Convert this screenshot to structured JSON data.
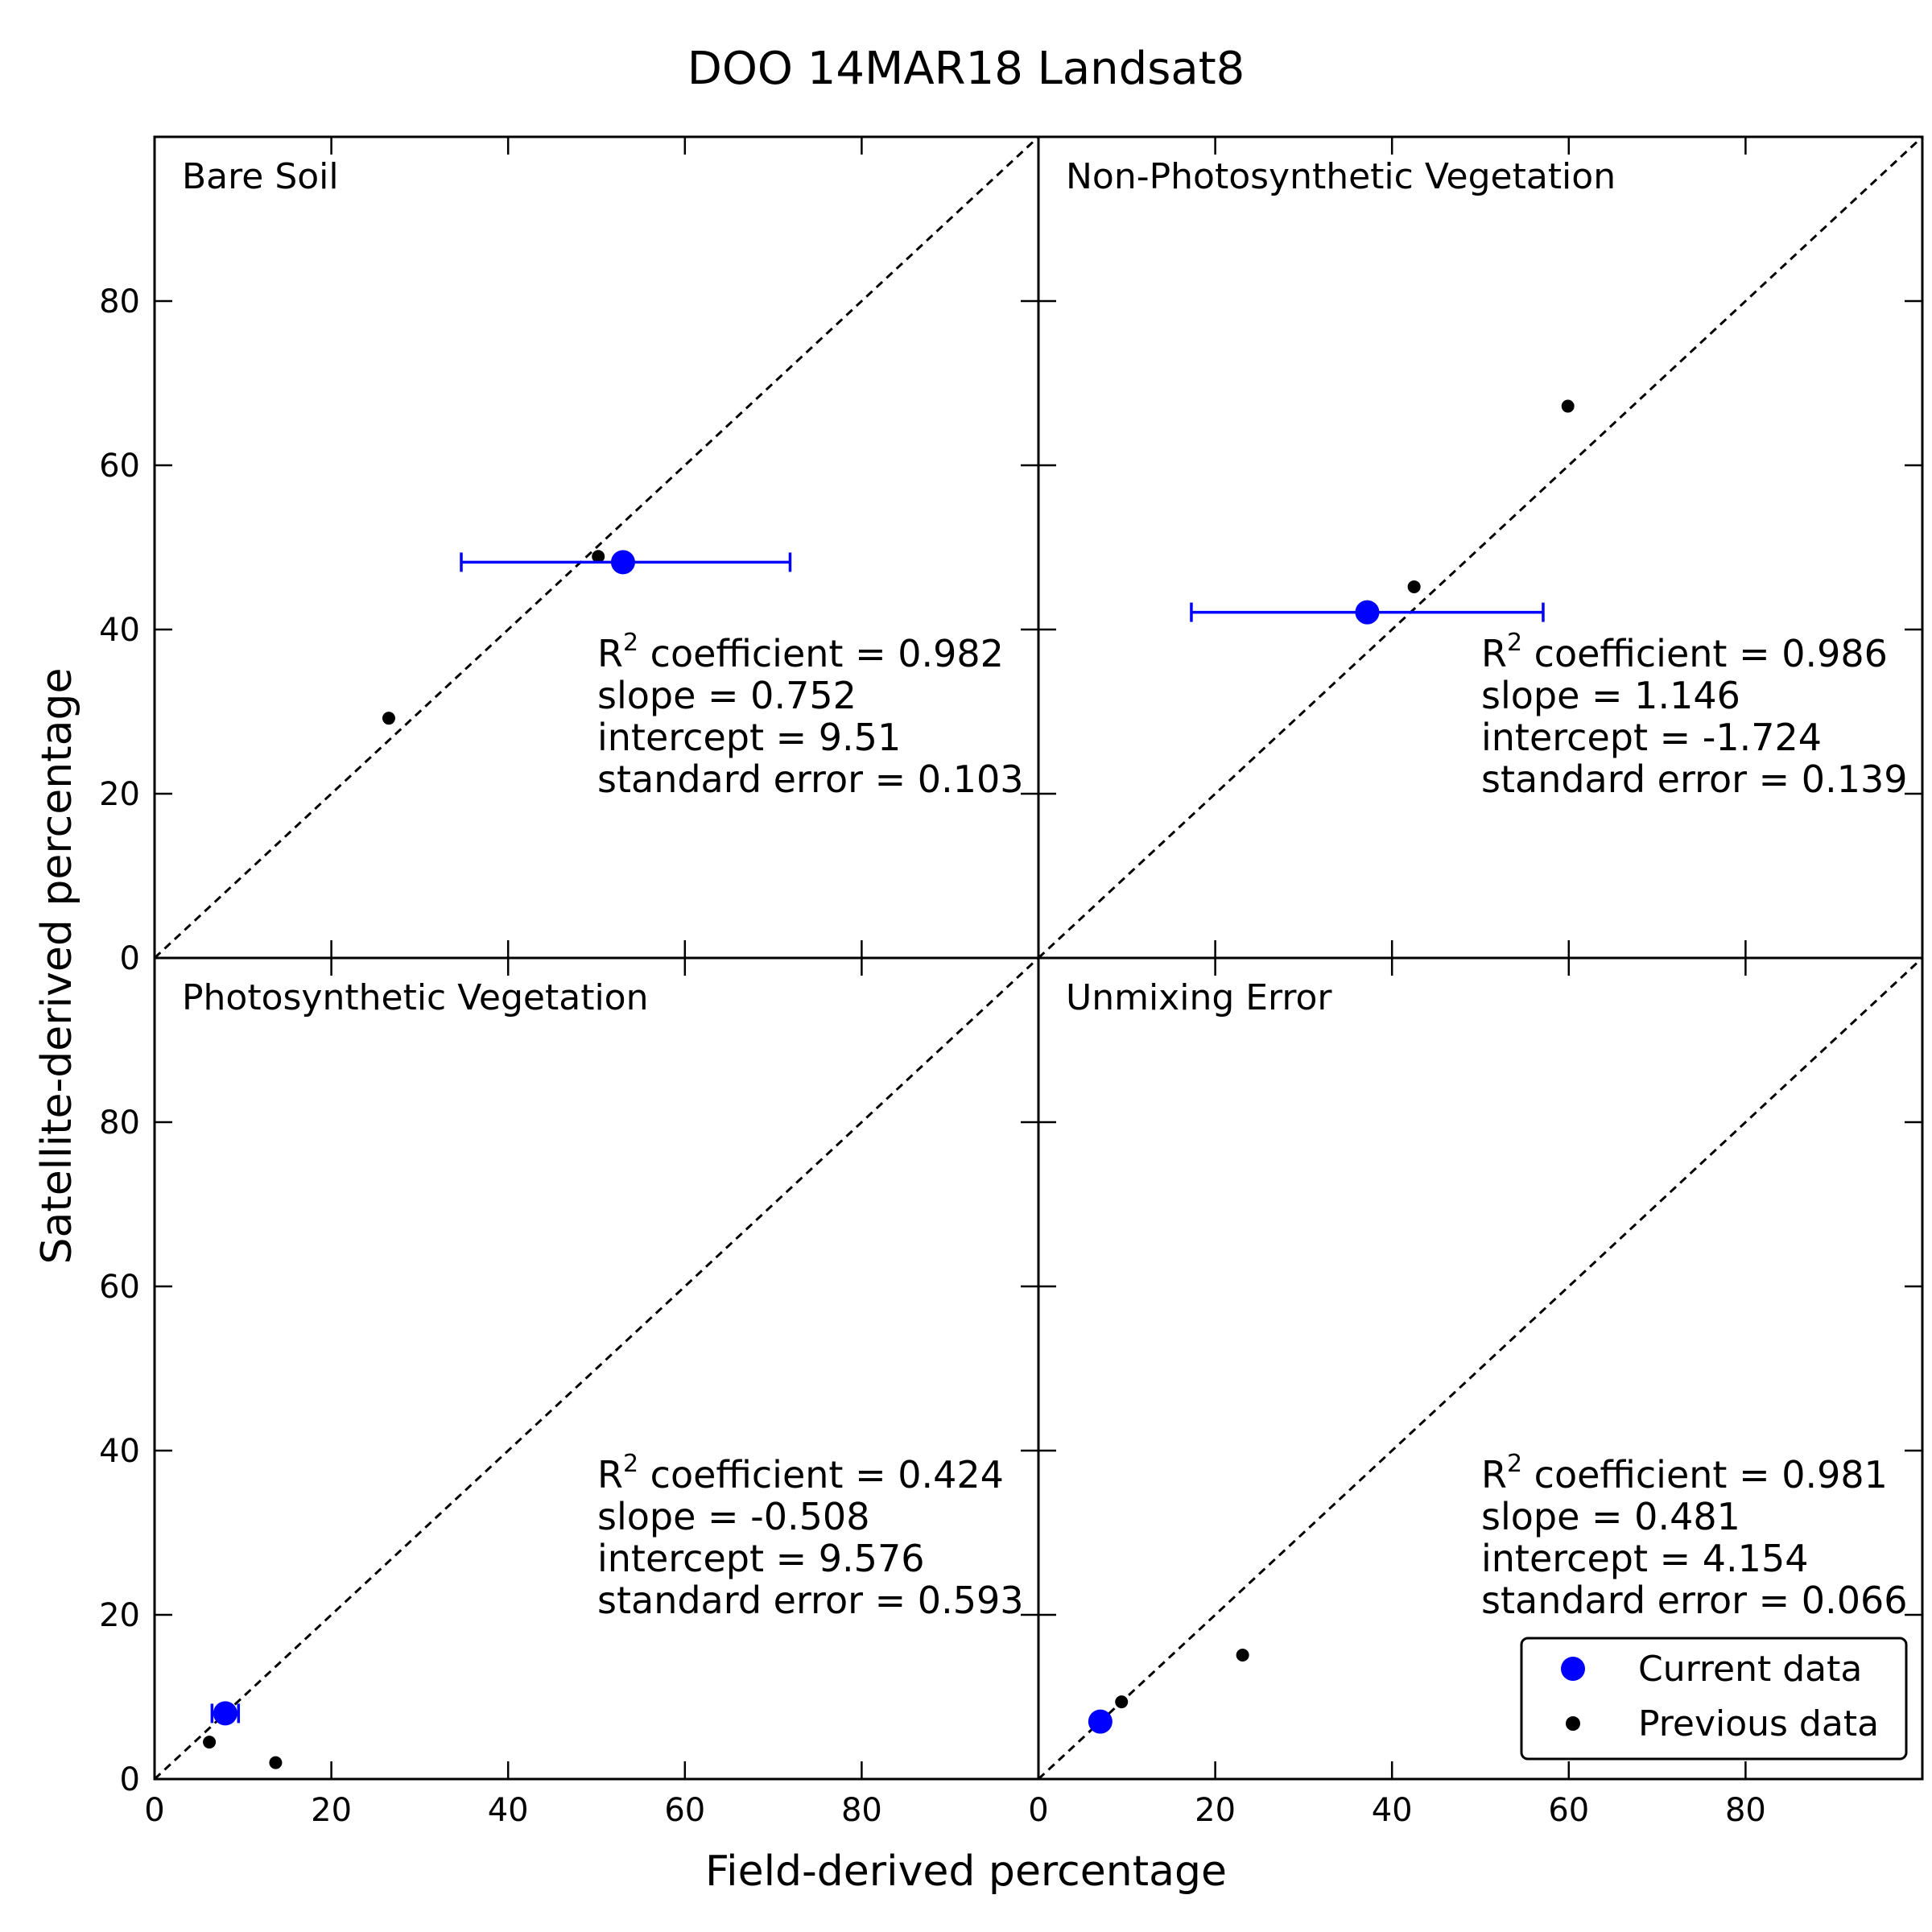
{
  "chart_data": {
    "type": "scatter",
    "title": "DOO  14MAR18  Landsat8",
    "xlabel": "Field-derived percentage",
    "ylabel": "Satellite-derived percentage",
    "xlim": [
      0,
      100
    ],
    "ylim": [
      0,
      100
    ],
    "ticks": [
      0,
      20,
      40,
      60,
      80
    ],
    "reference_line": "1:1 dashed",
    "grid": false,
    "legend": {
      "placement": "lower-right of bottom-right panel",
      "entries": [
        {
          "label": "Current data",
          "color": "#0000ff"
        },
        {
          "label": "Previous data",
          "color": "#000000"
        }
      ]
    },
    "panels": [
      {
        "name": "Bare Soil",
        "current": {
          "x": 53,
          "y": 48.2,
          "xerr_low": 34.7,
          "xerr_high": 71.9
        },
        "previous": [
          {
            "x": 26.5,
            "y": 29.2
          },
          {
            "x": 50.2,
            "y": 48.9
          }
        ],
        "stats": {
          "r2_prefix": "R",
          "r2_sup": "2",
          "r2_rest": " coefficient = 0.982",
          "slope": "slope = 0.752",
          "intercept": "intercept = 9.51",
          "stderr": "standard error = 0.103"
        }
      },
      {
        "name": "Non-Photosynthetic Vegetation",
        "current": {
          "x": 37.2,
          "y": 42.1,
          "xerr_low": 17.3,
          "xerr_high": 57.1
        },
        "previous": [
          {
            "x": 42.5,
            "y": 45.2
          },
          {
            "x": 59.9,
            "y": 67.2
          }
        ],
        "stats": {
          "r2_prefix": "R",
          "r2_sup": "2",
          "r2_rest": " coefficient = 0.986",
          "slope": "slope = 1.146",
          "intercept": "intercept = -1.724",
          "stderr": "standard error = 0.139"
        }
      },
      {
        "name": "Photosynthetic Vegetation",
        "current": {
          "x": 8.0,
          "y": 8.0,
          "xerr_low": 6.5,
          "xerr_high": 9.5
        },
        "previous": [
          {
            "x": 6.2,
            "y": 4.5
          },
          {
            "x": 13.7,
            "y": 2.0
          }
        ],
        "stats": {
          "r2_prefix": "R",
          "r2_sup": "2",
          "r2_rest": " coefficient = 0.424",
          "slope": "slope = -0.508",
          "intercept": "intercept = 9.576",
          "stderr": "standard error = 0.593"
        }
      },
      {
        "name": "Unmixing Error",
        "current": {
          "x": 7.0,
          "y": 7.0,
          "xerr_low": 7.0,
          "xerr_high": 7.0
        },
        "previous": [
          {
            "x": 9.4,
            "y": 9.4
          },
          {
            "x": 23.1,
            "y": 15.1
          }
        ],
        "stats": {
          "r2_prefix": "R",
          "r2_sup": "2",
          "r2_rest": " coefficient = 0.981",
          "slope": "slope = 0.481",
          "intercept": "intercept = 4.154",
          "stderr": "standard error = 0.066"
        }
      }
    ]
  }
}
